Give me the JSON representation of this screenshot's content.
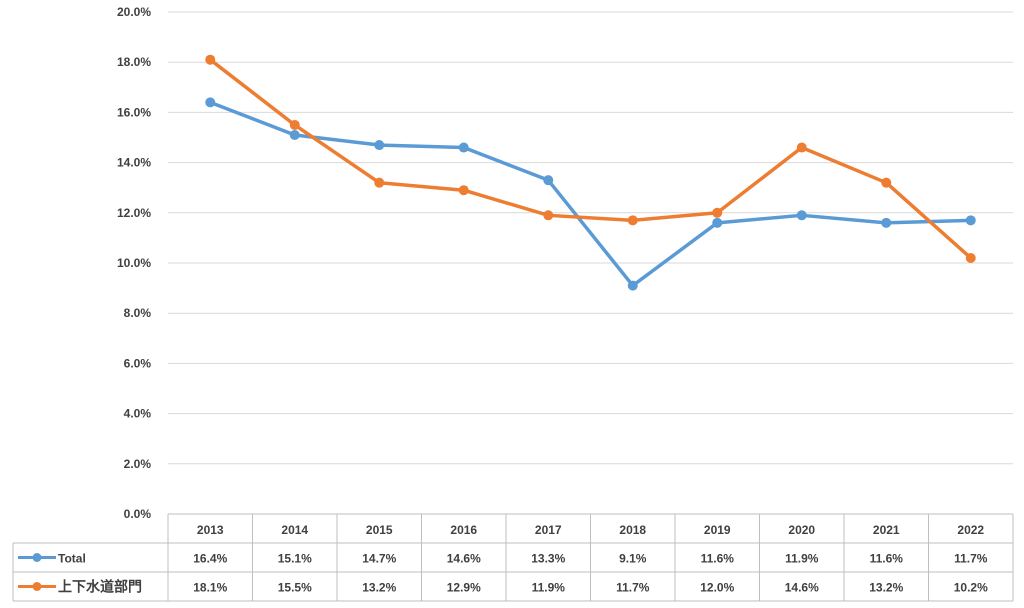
{
  "chart_data": {
    "type": "line",
    "categories": [
      "2013",
      "2014",
      "2015",
      "2016",
      "2017",
      "2018",
      "2019",
      "2020",
      "2021",
      "2022"
    ],
    "series": [
      {
        "name": "Total",
        "color": "#5b9bd5",
        "values": [
          16.4,
          15.1,
          14.7,
          14.6,
          13.3,
          9.1,
          11.6,
          11.9,
          11.6,
          11.7
        ],
        "labels": [
          "16.4%",
          "15.1%",
          "14.7%",
          "14.6%",
          "13.3%",
          "9.1%",
          "11.6%",
          "11.9%",
          "11.6%",
          "11.7%"
        ]
      },
      {
        "name": "上下水道部門",
        "color": "#ed7d31",
        "values": [
          18.1,
          15.5,
          13.2,
          12.9,
          11.9,
          11.7,
          12.0,
          14.6,
          13.2,
          10.2
        ],
        "labels": [
          "18.1%",
          "15.5%",
          "13.2%",
          "12.9%",
          "11.9%",
          "11.7%",
          "12.0%",
          "14.6%",
          "13.2%",
          "10.2%"
        ]
      }
    ],
    "ylim": [
      0,
      20
    ],
    "yticks": [
      "0.0%",
      "2.0%",
      "4.0%",
      "6.0%",
      "8.0%",
      "10.0%",
      "12.0%",
      "14.0%",
      "16.0%",
      "18.0%",
      "20.0%"
    ],
    "grid": true,
    "legend": "data-table"
  }
}
